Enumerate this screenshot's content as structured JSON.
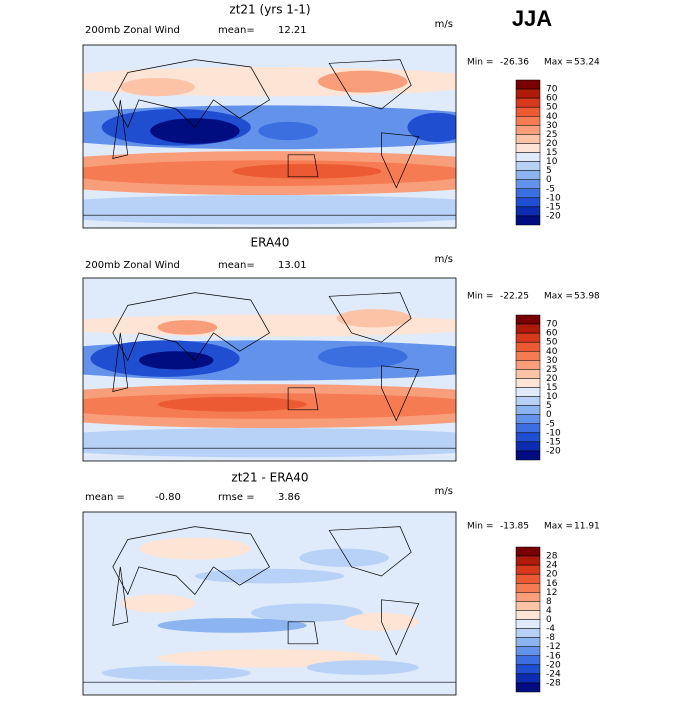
{
  "header": {
    "title": "JJA"
  },
  "panels": [
    {
      "title": "zt21 (yrs 1-1)",
      "left_label": "200mb Zonal Wind",
      "stat_label": "mean=",
      "stat": "12.21",
      "unit": "m/s",
      "min_label": "Min =",
      "min": "-26.36",
      "max_label": "Max =",
      "max": "53.24",
      "levels": [
        "70",
        "60",
        "50",
        "40",
        "30",
        "25",
        "20",
        "15",
        "10",
        "5",
        "0",
        "-5",
        "-10",
        "-15",
        "-20"
      ]
    },
    {
      "title": "ERA40",
      "left_label": "200mb Zonal Wind",
      "stat_label": "mean=",
      "stat": "13.01",
      "unit": "m/s",
      "min_label": "Min =",
      "min": "-22.25",
      "max_label": "Max =",
      "max": "53.98",
      "levels": [
        "70",
        "60",
        "50",
        "40",
        "30",
        "25",
        "20",
        "15",
        "10",
        "5",
        "0",
        "-5",
        "-10",
        "-15",
        "-20"
      ]
    },
    {
      "title": "zt21 - ERA40",
      "left_label": "mean =",
      "left_value": "-0.80",
      "stat_label": "rmse =",
      "stat": "3.86",
      "unit": "m/s",
      "min_label": "Min =",
      "min": "-13.85",
      "max_label": "Max =",
      "max": "11.91",
      "levels": [
        "28",
        "24",
        "20",
        "16",
        "12",
        "8",
        "4",
        "0",
        "-4",
        "-8",
        "-12",
        "-16",
        "-20",
        "-24",
        "-28"
      ]
    }
  ]
}
